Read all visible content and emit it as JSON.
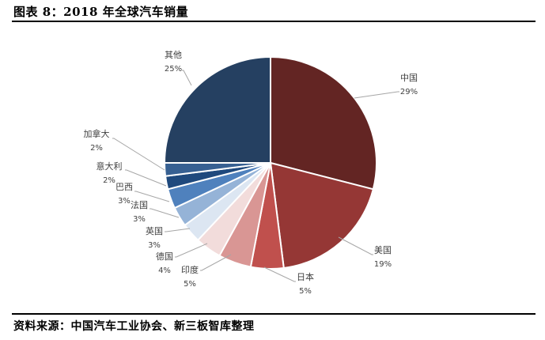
{
  "title": "图表 8：2018 年全球汽车销量",
  "source": "资料来源：中国汽车工业协会、新三板智库整理",
  "chart_data": {
    "type": "pie",
    "title": "2018 年全球汽车销量",
    "categories": [
      "中国",
      "美国",
      "日本",
      "印度",
      "德国",
      "英国",
      "法国",
      "巴西",
      "意大利",
      "加拿大",
      "其他"
    ],
    "values": [
      29,
      19,
      5,
      5,
      4,
      3,
      3,
      3,
      2,
      2,
      25
    ],
    "value_unit": "%",
    "colors": [
      "#632523",
      "#953735",
      "#C0504D",
      "#D99694",
      "#F2DCDB",
      "#DCE6F2",
      "#95B3D7",
      "#4F81BD",
      "#1F497D",
      "#376092",
      "#254061"
    ],
    "labels": [
      {
        "name": "中国",
        "pct": "29%"
      },
      {
        "name": "美国",
        "pct": "19%"
      },
      {
        "name": "日本",
        "pct": "5%"
      },
      {
        "name": "印度",
        "pct": "5%"
      },
      {
        "name": "德国",
        "pct": "4%"
      },
      {
        "name": "英国",
        "pct": "3%"
      },
      {
        "name": "法国",
        "pct": "3%"
      },
      {
        "name": "巴西",
        "pct": "3%"
      },
      {
        "name": "意大利",
        "pct": "2%"
      },
      {
        "name": "加拿大",
        "pct": "2%"
      },
      {
        "name": "其他",
        "pct": "25%"
      }
    ],
    "start_angle_deg": 0,
    "direction": "clockwise",
    "legend": "none"
  }
}
